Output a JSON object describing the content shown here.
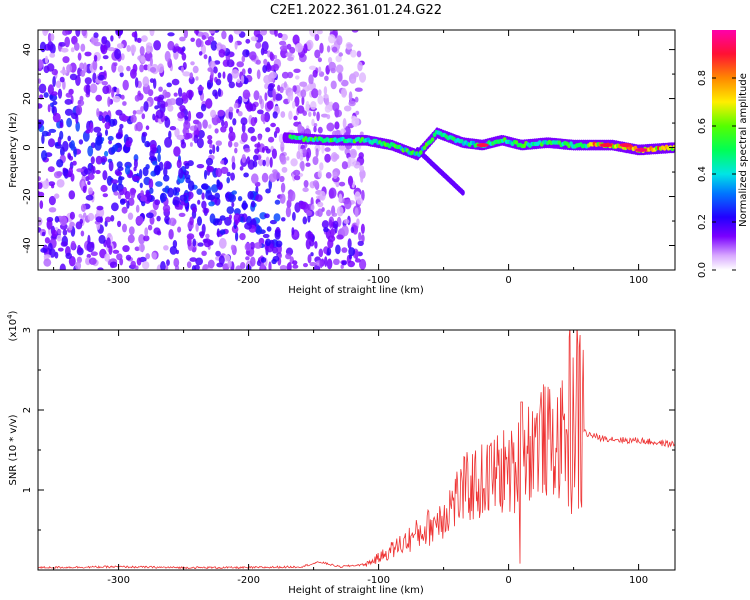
{
  "chart_data": [
    {
      "type": "heatmap",
      "title": "C2E1.2022.361.01.24.G22",
      "xlabel": "Height of straight line (km)",
      "ylabel": "Frequency (Hz)",
      "xlim": [
        -362,
        128
      ],
      "ylim": [
        -50,
        48
      ],
      "xticks": [
        "-300",
        "-200",
        "-100",
        "0",
        "100"
      ],
      "yticks": [
        "-40",
        "-20",
        "0",
        "20",
        "40"
      ],
      "colorbar": {
        "label": "Normalized spectral amplitude",
        "range": [
          0,
          1
        ],
        "ticks": [
          "0.0",
          "0.2",
          "0.4",
          "0.6",
          "0.8"
        ]
      },
      "ridge": {
        "x": [
          -170,
          -140,
          -110,
          -90,
          -70,
          -55,
          -45,
          -35,
          -20,
          -5,
          10,
          30,
          50,
          80,
          100,
          128
        ],
        "frequency": [
          4,
          3,
          3,
          1,
          -3,
          6,
          4,
          2,
          1,
          3,
          1,
          2,
          1,
          1,
          -1,
          0
        ]
      },
      "grid": false
    },
    {
      "type": "line",
      "title": "",
      "xlabel": "Height of straight line (km)",
      "ylabel": "SNR (10 * v/v)",
      "y_multiplier": "(x10^4)",
      "xlim": [
        -362,
        128
      ],
      "ylim": [
        0,
        3
      ],
      "xticks": [
        "-300",
        "-200",
        "-100",
        "0",
        "100"
      ],
      "yticks": [
        "1",
        "2",
        "3"
      ],
      "series": [
        {
          "color": "#ee3333",
          "x": [
            -362,
            -300,
            -250,
            -200,
            -160,
            -145,
            -130,
            -110,
            -100,
            -90,
            -80,
            -70,
            -60,
            -50,
            -40,
            -30,
            -20,
            -10,
            0,
            5,
            10,
            15,
            20,
            25,
            30,
            35,
            40,
            45,
            50,
            55,
            60,
            65,
            70,
            80,
            90,
            100,
            110,
            120,
            128
          ],
          "y": [
            0.03,
            0.04,
            0.03,
            0.03,
            0.04,
            0.1,
            0.04,
            0.07,
            0.15,
            0.25,
            0.35,
            0.45,
            0.55,
            0.7,
            0.9,
            1.05,
            1.1,
            1.2,
            1.25,
            1.2,
            1.45,
            1.5,
            1.6,
            1.65,
            1.6,
            1.55,
            1.6,
            1.75,
            2.0,
            1.85,
            1.7,
            1.68,
            1.65,
            1.64,
            1.62,
            1.62,
            1.6,
            1.58,
            1.57
          ]
        }
      ],
      "grid": false
    }
  ]
}
